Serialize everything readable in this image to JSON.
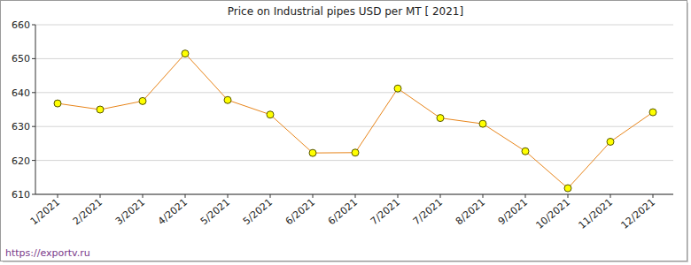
{
  "chart_data": {
    "type": "line",
    "title": "Price on Industrial pipes USD per MT [ 2021]",
    "categories": [
      "1/2021",
      "2/2021",
      "3/2021",
      "4/2021",
      "5/2021",
      "5/2021",
      "6/2021",
      "6/2021",
      "7/2021",
      "7/2021",
      "8/2021",
      "9/2021",
      "10/2021",
      "11/2021",
      "12/2021"
    ],
    "values": [
      636.8,
      635,
      637.5,
      651.5,
      637.8,
      633.5,
      622.2,
      622.3,
      641.2,
      632.5,
      630.8,
      622.7,
      611.8,
      625.5,
      634.2
    ],
    "color": "#e8851a",
    "marker": "circle",
    "ylim": [
      610,
      660
    ],
    "yticks": [
      610,
      620,
      630,
      640,
      650,
      660
    ],
    "grid": true,
    "source": "https://exportv.ru"
  }
}
